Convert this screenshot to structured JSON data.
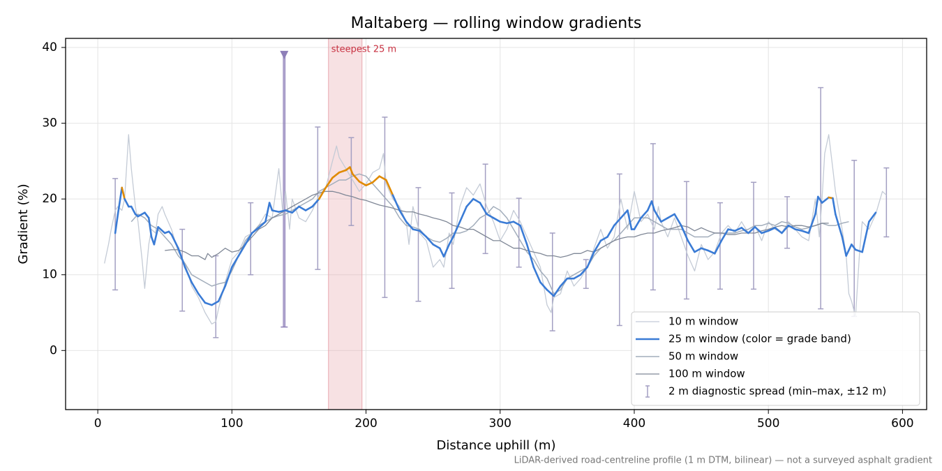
{
  "chart_data": {
    "type": "line",
    "title": "Maltaberg — rolling window gradients",
    "x_label": "Distance uphill (m)",
    "y_label": "Gradient (%)",
    "footnote": "LiDAR-derived road-centreline profile (1 m DTM, bilinear) — not a surveyed asphalt gradient",
    "xlim": [
      -24,
      618
    ],
    "ylim": [
      -7.8,
      41.2
    ],
    "xticks": [
      0,
      100,
      200,
      300,
      400,
      500,
      600
    ],
    "yticks": [
      0,
      10,
      20,
      30,
      40
    ],
    "grid": true,
    "legend": "lower right",
    "series": [
      {
        "name": "10 m window",
        "color": "#c4cbd6",
        "width": 1.3,
        "x": [
          5,
          8,
          10,
          13,
          15,
          18,
          20,
          23,
          25,
          28,
          30,
          33,
          35,
          38,
          40,
          43,
          45,
          48,
          50,
          55,
          60,
          65,
          70,
          75,
          80,
          85,
          88,
          90,
          95,
          100,
          105,
          110,
          115,
          120,
          125,
          130,
          135,
          138,
          140,
          143,
          145,
          150,
          155,
          160,
          165,
          170,
          175,
          178,
          180,
          185,
          190,
          195,
          200,
          205,
          210,
          213,
          215,
          220,
          225,
          230,
          232,
          235,
          240,
          245,
          250,
          255,
          258,
          262,
          265,
          270,
          275,
          280,
          285,
          290,
          295,
          300,
          305,
          310,
          315,
          320,
          325,
          330,
          335,
          338,
          340,
          345,
          350,
          355,
          360,
          365,
          370,
          375,
          380,
          385,
          390,
          395,
          400,
          405,
          410,
          415,
          418,
          420,
          425,
          430,
          435,
          440,
          445,
          450,
          455,
          460,
          465,
          470,
          475,
          480,
          485,
          490,
          495,
          500,
          505,
          510,
          515,
          520,
          525,
          530,
          535,
          538,
          540,
          542,
          545,
          548,
          550,
          555,
          558,
          560,
          562,
          565,
          568,
          570,
          575,
          580,
          585,
          588
        ],
        "values": [
          11.5,
          14,
          16,
          18.5,
          19,
          18.5,
          20,
          28.5,
          24,
          19,
          17,
          12,
          8.2,
          14,
          16,
          15.5,
          18,
          19,
          18,
          16,
          13,
          11.5,
          8.5,
          7,
          5,
          3.5,
          3.8,
          5.5,
          9,
          12,
          13,
          15,
          15.5,
          16.5,
          18,
          17.5,
          24,
          18,
          21,
          16,
          20,
          17.5,
          17,
          18.5,
          20.5,
          21.5,
          25,
          27,
          25.5,
          24,
          22.5,
          21,
          22,
          23.5,
          24,
          26,
          22,
          20,
          19,
          17,
          14,
          19,
          15.5,
          14.5,
          11,
          12,
          11,
          15.5,
          14,
          19,
          21.5,
          20.5,
          22,
          19,
          17,
          14.5,
          16,
          18.5,
          17,
          15,
          13,
          11,
          6,
          5,
          7,
          7.5,
          10.5,
          8.5,
          9.5,
          11,
          13.5,
          16,
          13.5,
          15,
          20,
          16,
          21,
          17,
          18,
          16,
          19,
          17,
          15,
          17.5,
          15,
          12.5,
          10.5,
          14,
          12,
          13,
          15.5,
          16.5,
          15.5,
          17,
          15.5,
          16.5,
          14.5,
          17,
          16,
          15.5,
          17,
          16,
          15,
          14.5,
          20,
          15,
          20,
          26,
          28.5,
          24,
          21,
          16,
          12.5,
          7.5,
          6.5,
          4.5,
          13,
          17,
          16,
          18,
          21,
          20.5
        ]
      },
      {
        "name": "25 m window (color = grade band)",
        "color": "#3a7bd5",
        "width": 2.6,
        "band_min": 20,
        "band_color": "#e08a00",
        "x": [
          13,
          15,
          18,
          20,
          23,
          25,
          28,
          30,
          35,
          38,
          40,
          42,
          45,
          50,
          53,
          55,
          60,
          65,
          70,
          75,
          80,
          85,
          90,
          95,
          100,
          105,
          110,
          115,
          120,
          125,
          128,
          130,
          135,
          140,
          145,
          150,
          155,
          160,
          165,
          170,
          175,
          180,
          185,
          188,
          190,
          195,
          200,
          205,
          210,
          215,
          220,
          225,
          230,
          235,
          240,
          245,
          250,
          255,
          258,
          262,
          265,
          270,
          275,
          280,
          285,
          290,
          295,
          300,
          305,
          310,
          315,
          320,
          325,
          330,
          335,
          340,
          345,
          350,
          355,
          360,
          365,
          370,
          375,
          380,
          385,
          390,
          395,
          398,
          400,
          405,
          410,
          413,
          415,
          420,
          425,
          430,
          435,
          440,
          445,
          450,
          455,
          460,
          465,
          470,
          475,
          480,
          485,
          490,
          495,
          500,
          505,
          510,
          515,
          520,
          525,
          530,
          535,
          537,
          540,
          545,
          548,
          550,
          555,
          558,
          562,
          565,
          570,
          575,
          580
        ],
        "values": [
          15.5,
          18,
          21.5,
          20,
          19,
          19,
          18,
          17.7,
          18.2,
          17.5,
          15,
          14,
          16.3,
          15.5,
          15.7,
          15.3,
          13.5,
          11,
          9,
          7.5,
          6.3,
          6,
          6.5,
          8.5,
          11,
          12.5,
          14,
          15.5,
          16.2,
          17,
          19.5,
          18.5,
          18.3,
          18.5,
          18.2,
          19,
          18.5,
          19,
          20,
          21.5,
          22.8,
          23.5,
          23.8,
          24.2,
          23.3,
          22.3,
          21.8,
          22.2,
          23,
          22.5,
          20.5,
          18.5,
          17,
          16,
          15.8,
          15,
          14,
          13.5,
          12.4,
          14,
          15,
          17,
          19,
          20,
          19.5,
          18,
          17.5,
          17,
          16.8,
          17,
          16.5,
          14,
          11,
          9,
          8,
          7.2,
          8.5,
          9.5,
          9.5,
          10,
          11,
          13,
          14.5,
          15,
          16.5,
          17.5,
          18.5,
          16,
          16,
          17.5,
          18.5,
          19.7,
          18.5,
          17,
          17.5,
          18,
          16.5,
          14.5,
          13,
          13.5,
          13.2,
          12.8,
          14.5,
          16,
          15.8,
          16.2,
          15.5,
          16.3,
          15.5,
          15.8,
          16.2,
          15.5,
          16.5,
          16,
          15.8,
          15.5,
          18,
          20.3,
          19.5,
          20.2,
          20.1,
          18,
          15,
          12.5,
          14,
          13.3,
          13,
          17,
          18.2
        ]
      },
      {
        "name": "50 m window",
        "color": "#a2adbb",
        "width": 1.5,
        "x": [
          25,
          30,
          35,
          40,
          45,
          50,
          55,
          60,
          65,
          70,
          75,
          80,
          85,
          90,
          95,
          100,
          105,
          110,
          115,
          120,
          125,
          130,
          135,
          140,
          145,
          150,
          155,
          160,
          165,
          170,
          175,
          180,
          185,
          190,
          195,
          200,
          205,
          210,
          215,
          220,
          225,
          230,
          235,
          240,
          245,
          250,
          255,
          260,
          265,
          270,
          275,
          280,
          285,
          290,
          295,
          300,
          305,
          310,
          315,
          320,
          325,
          330,
          335,
          340,
          345,
          350,
          355,
          360,
          365,
          370,
          375,
          380,
          385,
          390,
          395,
          400,
          405,
          410,
          415,
          420,
          425,
          430,
          435,
          440,
          445,
          450,
          455,
          460,
          465,
          470,
          475,
          480,
          485,
          490,
          495,
          500,
          505,
          510,
          515,
          520,
          525,
          530,
          535,
          540,
          545,
          550,
          555,
          560
        ],
        "values": [
          17,
          18,
          17.5,
          16.5,
          16,
          15,
          14,
          12.5,
          11.5,
          10,
          9.5,
          9,
          8.5,
          8.8,
          9,
          10.5,
          12.5,
          14.5,
          15.5,
          16.5,
          17,
          17.5,
          17.8,
          18,
          18.5,
          19,
          19.5,
          20,
          21,
          21.5,
          22,
          22.5,
          22.5,
          23,
          23.3,
          23,
          22,
          21,
          20,
          19,
          17.5,
          16.5,
          16.3,
          16,
          15,
          14.5,
          14.3,
          14.8,
          15.5,
          15.5,
          15.8,
          16.5,
          17.5,
          18,
          19,
          18.5,
          17.5,
          16,
          14.5,
          13,
          12,
          10.5,
          9.5,
          7.5,
          8,
          9.5,
          10,
          10.5,
          11,
          12.5,
          13.5,
          14,
          14.5,
          15.5,
          16.5,
          17.5,
          17.5,
          17.5,
          17,
          16.5,
          16,
          16,
          16,
          15.5,
          15,
          15,
          15,
          15.5,
          15.5,
          15.5,
          15.5,
          15.8,
          16,
          16.5,
          16.5,
          16.8,
          16.5,
          17,
          16.8,
          16.3,
          16,
          16.2,
          16.5,
          16.8,
          16.5,
          16.5,
          16.8,
          17
        ]
      },
      {
        "name": "100 m window",
        "color": "#7f8796",
        "width": 1.3,
        "x": [
          50,
          55,
          60,
          65,
          70,
          75,
          80,
          82,
          85,
          90,
          95,
          100,
          105,
          110,
          115,
          120,
          125,
          130,
          135,
          140,
          145,
          150,
          155,
          160,
          165,
          170,
          175,
          180,
          185,
          190,
          195,
          200,
          205,
          210,
          215,
          220,
          225,
          230,
          235,
          240,
          245,
          250,
          255,
          260,
          265,
          270,
          275,
          280,
          285,
          290,
          295,
          300,
          305,
          310,
          315,
          320,
          325,
          330,
          335,
          340,
          345,
          350,
          355,
          360,
          365,
          370,
          375,
          380,
          385,
          390,
          395,
          400,
          405,
          410,
          415,
          420,
          425,
          430,
          435,
          440,
          445,
          450,
          455,
          460,
          465,
          470,
          475,
          480,
          485,
          490,
          495,
          500,
          505,
          510,
          515,
          520,
          525,
          530,
          535,
          540,
          545
        ],
        "values": [
          13.2,
          13.3,
          13.3,
          13,
          12.5,
          12.5,
          12,
          12.8,
          12.3,
          12.8,
          13.5,
          13,
          13.2,
          14,
          15,
          16,
          16.5,
          17.5,
          18,
          18.5,
          19,
          19.5,
          20,
          20.5,
          20.8,
          21,
          21,
          20.8,
          20.5,
          20.3,
          20,
          19.8,
          19.5,
          19.2,
          19,
          18.8,
          18.5,
          18.3,
          18.3,
          18,
          17.8,
          17.5,
          17.3,
          17,
          16.5,
          16.3,
          16,
          16,
          15.5,
          15,
          14.5,
          14.5,
          14,
          13.5,
          13.5,
          13.2,
          13,
          12.8,
          12.5,
          12.5,
          12.3,
          12.5,
          12.8,
          12.8,
          13.2,
          13,
          13.5,
          14,
          14.5,
          14.8,
          15,
          15,
          15.3,
          15.5,
          15.5,
          15.8,
          16,
          16.2,
          16.5,
          16.3,
          15.8,
          16.2,
          15.8,
          15.5,
          15.5,
          15.3,
          15.3,
          15.5,
          15.5,
          15.5,
          15.8,
          16,
          16.3,
          16.5,
          16.3,
          16.5,
          16.5,
          16.3,
          16.5,
          16.8,
          16.8
        ]
      }
    ],
    "errorbars": {
      "name": "2 m diagnostic spread (min–max, ±12 m)",
      "color": "#a39fc2",
      "x": [
        13,
        63,
        88,
        114,
        164,
        189,
        214,
        239,
        264,
        289,
        314,
        339,
        364,
        389,
        414,
        439,
        464,
        489,
        514,
        539,
        564,
        588
      ],
      "low": [
        8,
        5.2,
        1.7,
        10,
        10.7,
        16.5,
        7,
        6.5,
        8.2,
        12.8,
        11,
        2.6,
        8.2,
        3.3,
        8,
        6.8,
        8.1,
        8.1,
        13.5,
        5.5,
        4.5,
        15
      ],
      "high": [
        22.7,
        16,
        12.5,
        19.5,
        29.5,
        28.1,
        30.8,
        21.5,
        20.8,
        24.6,
        20.1,
        15.5,
        12,
        23.3,
        27.3,
        22.3,
        19.5,
        22.2,
        20.3,
        34.7,
        25.1,
        24.1
      ]
    },
    "off_scale": {
      "x": 139,
      "low": 3.1,
      "high": 39,
      "color": "#8e7fb8"
    },
    "span": {
      "x0": 172,
      "x1": 197,
      "label": "steepest 25 m",
      "color": "#e8a8b0",
      "label_color": "#c83040"
    }
  }
}
